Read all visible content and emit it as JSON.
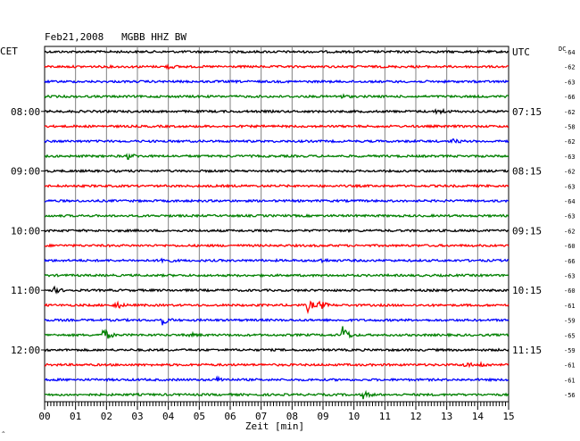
{
  "chart_data": {
    "type": "line",
    "title": "Feb21,2008   MGBB HHZ BW",
    "left_axis_label": "CET",
    "right_axis_label": "UTC",
    "dc_label": "DC",
    "xlabel": "Zeit [min]",
    "x_ticks": [
      "00",
      "01",
      "02",
      "03",
      "04",
      "05",
      "06",
      "07",
      "08",
      "09",
      "10",
      "11",
      "12",
      "13",
      "14",
      "15"
    ],
    "xlim": [
      0,
      15
    ],
    "left_time_labels": [
      {
        "row": 4,
        "text": "08:00"
      },
      {
        "row": 8,
        "text": "09:00"
      },
      {
        "row": 12,
        "text": "10:00"
      },
      {
        "row": 16,
        "text": "11:00"
      },
      {
        "row": 20,
        "text": "12:00"
      }
    ],
    "right_time_labels": [
      {
        "row": 0,
        "text": "UTC"
      },
      {
        "row": 4,
        "text": "07:15"
      },
      {
        "row": 8,
        "text": "08:15"
      },
      {
        "row": 12,
        "text": "09:15"
      },
      {
        "row": 16,
        "text": "10:15"
      },
      {
        "row": 20,
        "text": "11:15"
      }
    ],
    "series_colors": [
      "#000000",
      "#ff0000",
      "#0000ff",
      "#008000"
    ],
    "dc_values": [
      -64,
      -62,
      -63,
      -66,
      -62,
      -58,
      -62,
      -63,
      -62,
      -63,
      -64,
      -63,
      -62,
      -60,
      -66,
      -63,
      -60,
      -61,
      -59,
      -65,
      -59,
      -61,
      -61,
      -56
    ],
    "events": [
      {
        "row": 1,
        "minute": 4.0,
        "amplitude": 2
      },
      {
        "row": 3,
        "minute": 9.5,
        "amplitude": 3
      },
      {
        "row": 4,
        "minute": 12.7,
        "amplitude": 4
      },
      {
        "row": 6,
        "minute": 13.2,
        "amplitude": 2
      },
      {
        "row": 7,
        "minute": 2.7,
        "amplitude": 3
      },
      {
        "row": 14,
        "minute": 3.8,
        "amplitude": 4
      },
      {
        "row": 14,
        "minute": 8.9,
        "amplitude": 2
      },
      {
        "row": 16,
        "minute": 0.3,
        "amplitude": 3
      },
      {
        "row": 17,
        "minute": 2.3,
        "amplitude": 4
      },
      {
        "row": 17,
        "minute": 8.5,
        "amplitude": 7
      },
      {
        "row": 17,
        "minute": 8.9,
        "amplitude": 5
      },
      {
        "row": 18,
        "minute": 3.8,
        "amplitude": 5
      },
      {
        "row": 19,
        "minute": 1.9,
        "amplitude": 8
      },
      {
        "row": 19,
        "minute": 9.6,
        "amplitude": 13
      },
      {
        "row": 19,
        "minute": 4.7,
        "amplitude": 2
      },
      {
        "row": 21,
        "minute": 13.6,
        "amplitude": 3
      },
      {
        "row": 21,
        "minute": 14.1,
        "amplitude": 2
      },
      {
        "row": 22,
        "minute": 5.6,
        "amplitude": 3
      },
      {
        "row": 23,
        "minute": 10.3,
        "amplitude": 4
      }
    ]
  }
}
